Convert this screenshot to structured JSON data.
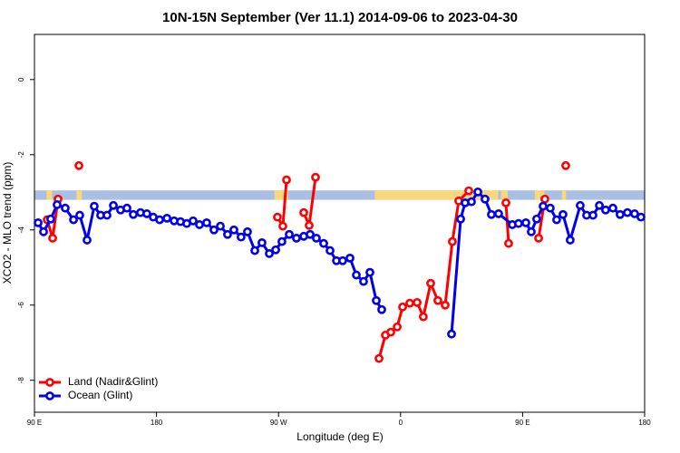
{
  "chart_data": {
    "type": "line",
    "title": "10N-15N September (Ver 11.1)   2014-09-06 to 2023-04-30",
    "x_label": "Longitude (deg E)",
    "y_label": "XCO2 - MLO trend (ppm)",
    "xlim": [
      90,
      540
    ],
    "ylim": [
      -8.85,
      1.2
    ],
    "xticks": [
      {
        "value": 90,
        "label": "90 E"
      },
      180,
      {
        "value": 270,
        "label": "90 W"
      },
      {
        "value": 360,
        "label": "0"
      },
      {
        "value": 450,
        "label": "90 E"
      },
      {
        "value": 540,
        "label": "180"
      }
    ],
    "yticks": [
      0,
      -2,
      -4,
      -6,
      -8
    ],
    "legend_position": "bottom-left",
    "surface_band": {
      "ylim": [
        -3.2,
        -2.95
      ],
      "ocean_color": "#a9bfe3",
      "land_color": "#f7d97c",
      "land_spans": [
        [
          99,
          103
        ],
        [
          121,
          125
        ],
        [
          267,
          277
        ],
        [
          341,
          432
        ],
        [
          434,
          439
        ],
        [
          459,
          466
        ],
        [
          479,
          482
        ]
      ]
    },
    "series": [
      {
        "name": "Land (Nadir&Glint)",
        "color": "#ff0000",
        "x": [
          99.4,
          103.4,
          107.4,
          null,
          122.8,
          null,
          269.2,
          273.2,
          275.9,
          null,
          288.6,
          292.6,
          297.3,
          null,
          344.1,
          348.8,
          352.8,
          357.5,
          361.5,
          366.8,
          372.2,
          376.8,
          382.2,
          387.5,
          392.9,
          398.2,
          402.9,
          410.3,
          null,
          437.7,
          439.7,
          null,
          461.8,
          466.4,
          null,
          481.8
        ],
        "values": [
          -3.73,
          -4.22,
          -3.18,
          null,
          -2.29,
          null,
          -3.66,
          -3.9,
          -2.67,
          null,
          -3.54,
          -3.88,
          -2.6,
          null,
          -7.42,
          -6.8,
          -6.72,
          -6.58,
          -6.05,
          -5.95,
          -5.93,
          -6.31,
          -5.42,
          -5.88,
          -6.0,
          -4.31,
          -3.23,
          -2.96,
          null,
          -3.28,
          -4.36,
          null,
          -4.22,
          -3.18,
          null,
          -2.29
        ]
      },
      {
        "name": "Ocean (Glint)",
        "color": "#0000ee",
        "x": [
          92.7,
          96.7,
          102.0,
          106.7,
          112.7,
          118.8,
          123.4,
          128.8,
          134.1,
          138.8,
          143.5,
          148.2,
          153.5,
          158.2,
          162.9,
          168.2,
          172.9,
          177.6,
          182.3,
          187.7,
          193.0,
          197.7,
          202.3,
          207.0,
          211.7,
          217.0,
          222.4,
          227.1,
          232.4,
          237.1,
          242.4,
          247.1,
          252.5,
          257.8,
          263.2,
          267.9,
          272.5,
          277.9,
          283.2,
          288.6,
          293.3,
          297.9,
          303.3,
          308.0,
          312.7,
          317.3,
          322.7,
          327.4,
          332.7,
          337.4,
          342.1,
          346.1,
          null,
          397.6,
          404.3,
          407.6,
          412.3,
          417.0,
          422.3,
          427.0,
          432.3,
          442.4,
          447.0,
          452.4,
          456.4,
          460.4,
          465.1,
          470.4,
          475.1,
          479.8,
          485.1,
          492.5,
          497.2,
          501.9,
          506.6,
          511.2,
          516.6,
          521.9,
          527.3,
          532.6,
          537.3
        ],
        "values": [
          -3.81,
          -4.05,
          -3.71,
          -3.33,
          -3.42,
          -3.73,
          -3.61,
          -4.27,
          -3.37,
          -3.61,
          -3.61,
          -3.35,
          -3.47,
          -3.42,
          -3.59,
          -3.54,
          -3.57,
          -3.66,
          -3.73,
          -3.69,
          -3.76,
          -3.78,
          -3.83,
          -3.76,
          -3.86,
          -3.81,
          -4.0,
          -3.9,
          -4.12,
          -4.0,
          -4.19,
          -4.05,
          -4.55,
          -4.34,
          -4.63,
          -4.53,
          -4.31,
          -4.12,
          -4.22,
          -4.17,
          -4.12,
          -4.22,
          -4.36,
          -4.55,
          -4.82,
          -4.82,
          -4.75,
          -5.2,
          -5.37,
          -5.13,
          -5.88,
          -6.12,
          null,
          -6.77,
          -3.71,
          -3.28,
          -3.25,
          -2.99,
          -3.18,
          -3.59,
          -3.57,
          -3.86,
          -3.83,
          -3.81,
          -4.05,
          -3.71,
          -3.37,
          -3.42,
          -3.73,
          -3.59,
          -4.27,
          -3.35,
          -3.61,
          -3.61,
          -3.35,
          -3.47,
          -3.42,
          -3.59,
          -3.54,
          -3.57,
          -3.66
        ]
      }
    ]
  }
}
